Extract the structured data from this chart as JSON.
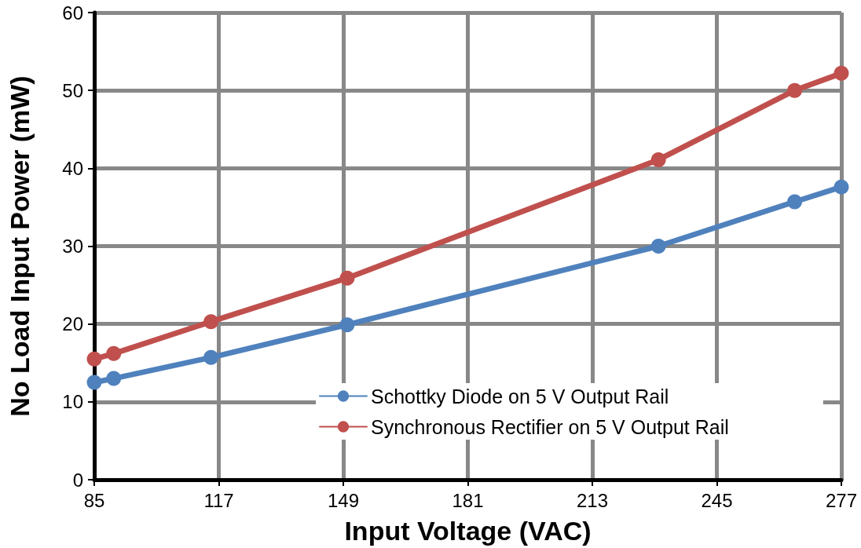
{
  "chart_data": {
    "type": "line",
    "xlabel": "Input Voltage (VAC)",
    "ylabel": "No Load Input Power (mW)",
    "x": [
      85,
      90,
      115,
      150,
      230,
      265,
      277
    ],
    "series": [
      {
        "name": "Schottky Diode on 5 V Output Rail",
        "color": "#4f81bd",
        "values": [
          12.5,
          13.0,
          15.7,
          19.9,
          30.0,
          35.7,
          37.6
        ]
      },
      {
        "name": "Synchronous Rectifier on 5 V Output Rail",
        "color": "#c0504d",
        "values": [
          15.5,
          16.2,
          20.3,
          25.9,
          41.1,
          50.0,
          52.2
        ]
      }
    ],
    "xlim": [
      85,
      277
    ],
    "xticks": [
      85,
      117,
      149,
      181,
      213,
      245,
      277
    ],
    "ylim": [
      0,
      60
    ],
    "yticks": [
      0,
      10,
      20,
      30,
      40,
      50,
      60
    ],
    "grid": true,
    "legend": "bottom right",
    "marker": "circle",
    "line_style": "solid"
  }
}
